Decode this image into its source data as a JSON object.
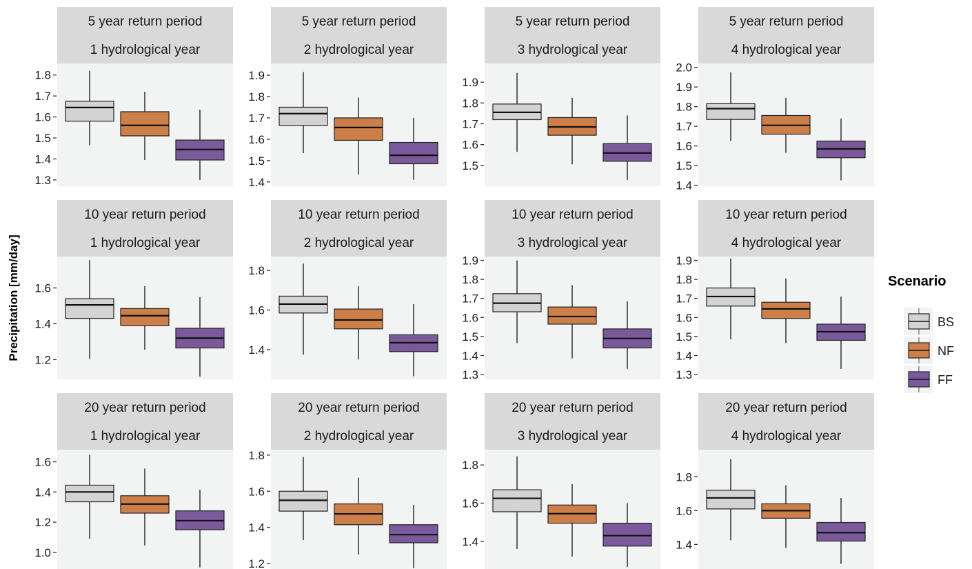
{
  "chart_data": {
    "type": "boxplot",
    "ylabel": "Precipitation [mm/day]",
    "legend": {
      "title": "Scenario",
      "placement": "right",
      "entries": [
        {
          "name": "BS",
          "color": "#d3d3d3"
        },
        {
          "name": "NF",
          "color": "#cd7f4a"
        },
        {
          "name": "FF",
          "color": "#7b5a9b"
        }
      ]
    },
    "panels": [
      {
        "strip_top": "5 year return period",
        "strip_bottom": "1 hydrological year",
        "ylim": [
          1.27,
          1.855
        ],
        "yticks": [
          1.3,
          1.4,
          1.5,
          1.6,
          1.7,
          1.8
        ],
        "tick_labels": [
          "1.3",
          "1.4",
          "1.5",
          "1.6",
          "1.7",
          "1.8"
        ],
        "boxes": [
          {
            "min": 1.465,
            "q1": 1.58,
            "median": 1.645,
            "q3": 1.675,
            "max": 1.82
          },
          {
            "min": 1.395,
            "q1": 1.51,
            "median": 1.56,
            "q3": 1.625,
            "max": 1.72
          },
          {
            "min": 1.3,
            "q1": 1.395,
            "median": 1.445,
            "q3": 1.49,
            "max": 1.635
          }
        ]
      },
      {
        "strip_top": "5 year return period",
        "strip_bottom": "2 hydrological year",
        "ylim": [
          1.38,
          1.955
        ],
        "yticks": [
          1.4,
          1.5,
          1.6,
          1.7,
          1.8,
          1.9
        ],
        "tick_labels": [
          "1.4",
          "1.5",
          "1.6",
          "1.7",
          "1.8",
          "1.9"
        ],
        "boxes": [
          {
            "min": 1.535,
            "q1": 1.665,
            "median": 1.72,
            "q3": 1.75,
            "max": 1.915
          },
          {
            "min": 1.435,
            "q1": 1.595,
            "median": 1.655,
            "q3": 1.7,
            "max": 1.795
          },
          {
            "min": 1.41,
            "q1": 1.485,
            "median": 1.525,
            "q3": 1.585,
            "max": 1.7
          }
        ]
      },
      {
        "strip_top": "5 year return period",
        "strip_bottom": "3 hydrological year",
        "ylim": [
          1.4,
          1.99
        ],
        "yticks": [
          1.5,
          1.6,
          1.7,
          1.8,
          1.9
        ],
        "tick_labels": [
          "1.5",
          "1.6",
          "1.7",
          "1.8",
          "1.9"
        ],
        "boxes": [
          {
            "min": 1.565,
            "q1": 1.72,
            "median": 1.755,
            "q3": 1.795,
            "max": 1.945
          },
          {
            "min": 1.505,
            "q1": 1.645,
            "median": 1.685,
            "q3": 1.73,
            "max": 1.825
          },
          {
            "min": 1.43,
            "q1": 1.52,
            "median": 1.56,
            "q3": 1.605,
            "max": 1.74
          }
        ]
      },
      {
        "strip_top": "5 year return period",
        "strip_bottom": "4 hydrological year",
        "ylim": [
          1.395,
          2.02
        ],
        "yticks": [
          1.4,
          1.5,
          1.6,
          1.7,
          1.8,
          1.9,
          2.0
        ],
        "tick_labels": [
          "1.4",
          "1.5",
          "1.6",
          "1.7",
          "1.8",
          "1.9",
          "2.0"
        ],
        "boxes": [
          {
            "min": 1.625,
            "q1": 1.735,
            "median": 1.79,
            "q3": 1.815,
            "max": 1.975
          },
          {
            "min": 1.565,
            "q1": 1.66,
            "median": 1.705,
            "q3": 1.755,
            "max": 1.845
          },
          {
            "min": 1.425,
            "q1": 1.54,
            "median": 1.585,
            "q3": 1.625,
            "max": 1.74
          }
        ]
      },
      {
        "strip_top": "10 year return period",
        "strip_bottom": "1 hydrological year",
        "ylim": [
          1.09,
          1.775
        ],
        "yticks": [
          1.2,
          1.4,
          1.6
        ],
        "tick_labels": [
          "1.2",
          "1.4",
          "1.6"
        ],
        "boxes": [
          {
            "min": 1.205,
            "q1": 1.43,
            "median": 1.505,
            "q3": 1.54,
            "max": 1.755
          },
          {
            "min": 1.255,
            "q1": 1.39,
            "median": 1.445,
            "q3": 1.485,
            "max": 1.61
          },
          {
            "min": 1.105,
            "q1": 1.265,
            "median": 1.32,
            "q3": 1.375,
            "max": 1.55
          }
        ]
      },
      {
        "strip_top": "10 year return period",
        "strip_bottom": "2 hydrological year",
        "ylim": [
          1.25,
          1.87
        ],
        "yticks": [
          1.4,
          1.6,
          1.8
        ],
        "tick_labels": [
          "1.4",
          "1.6",
          "1.8"
        ],
        "boxes": [
          {
            "min": 1.375,
            "q1": 1.585,
            "median": 1.63,
            "q3": 1.67,
            "max": 1.835
          },
          {
            "min": 1.35,
            "q1": 1.505,
            "median": 1.55,
            "q3": 1.605,
            "max": 1.72
          },
          {
            "min": 1.265,
            "q1": 1.39,
            "median": 1.435,
            "q3": 1.475,
            "max": 1.63
          }
        ]
      },
      {
        "strip_top": "10 year return period",
        "strip_bottom": "3 hydrological year",
        "ylim": [
          1.275,
          1.92
        ],
        "yticks": [
          1.3,
          1.4,
          1.5,
          1.6,
          1.7,
          1.8,
          1.9
        ],
        "tick_labels": [
          "1.3",
          "1.4",
          "1.5",
          "1.6",
          "1.7",
          "1.8",
          "1.9"
        ],
        "boxes": [
          {
            "min": 1.465,
            "q1": 1.63,
            "median": 1.675,
            "q3": 1.725,
            "max": 1.9
          },
          {
            "min": 1.385,
            "q1": 1.565,
            "median": 1.605,
            "q3": 1.655,
            "max": 1.77
          },
          {
            "min": 1.33,
            "q1": 1.44,
            "median": 1.49,
            "q3": 1.54,
            "max": 1.685
          }
        ]
      },
      {
        "strip_top": "10 year return period",
        "strip_bottom": "4 hydrological year",
        "ylim": [
          1.275,
          1.92
        ],
        "yticks": [
          1.3,
          1.4,
          1.5,
          1.6,
          1.7,
          1.8,
          1.9
        ],
        "tick_labels": [
          "1.3",
          "1.4",
          "1.5",
          "1.6",
          "1.7",
          "1.8",
          "1.9"
        ],
        "boxes": [
          {
            "min": 1.485,
            "q1": 1.66,
            "median": 1.71,
            "q3": 1.755,
            "max": 1.91
          },
          {
            "min": 1.465,
            "q1": 1.595,
            "median": 1.645,
            "q3": 1.68,
            "max": 1.805
          },
          {
            "min": 1.33,
            "q1": 1.48,
            "median": 1.525,
            "q3": 1.565,
            "max": 1.71
          }
        ]
      },
      {
        "strip_top": "20 year return period",
        "strip_bottom": "1 hydrological year",
        "ylim": [
          0.89,
          1.68
        ],
        "yticks": [
          1.0,
          1.2,
          1.4,
          1.6
        ],
        "tick_labels": [
          "1.0",
          "1.2",
          "1.4",
          "1.6"
        ],
        "boxes": [
          {
            "min": 1.09,
            "q1": 1.335,
            "median": 1.4,
            "q3": 1.445,
            "max": 1.645
          },
          {
            "min": 1.045,
            "q1": 1.26,
            "median": 1.32,
            "q3": 1.375,
            "max": 1.555
          },
          {
            "min": 0.9,
            "q1": 1.15,
            "median": 1.21,
            "q3": 1.275,
            "max": 1.415
          }
        ]
      },
      {
        "strip_top": "20 year return period",
        "strip_bottom": "2 hydrological year",
        "ylim": [
          1.17,
          1.83
        ],
        "yticks": [
          1.2,
          1.4,
          1.6,
          1.8
        ],
        "tick_labels": [
          "1.2",
          "1.4",
          "1.6",
          "1.8"
        ],
        "boxes": [
          {
            "min": 1.33,
            "q1": 1.49,
            "median": 1.55,
            "q3": 1.6,
            "max": 1.79
          },
          {
            "min": 1.25,
            "q1": 1.415,
            "median": 1.475,
            "q3": 1.53,
            "max": 1.675
          },
          {
            "min": 1.175,
            "q1": 1.315,
            "median": 1.36,
            "q3": 1.415,
            "max": 1.525
          }
        ]
      },
      {
        "strip_top": "20 year return period",
        "strip_bottom": "3 hydrological year",
        "ylim": [
          1.255,
          1.88
        ],
        "yticks": [
          1.4,
          1.6,
          1.8
        ],
        "tick_labels": [
          "1.4",
          "1.6",
          "1.8"
        ],
        "boxes": [
          {
            "min": 1.36,
            "q1": 1.555,
            "median": 1.625,
            "q3": 1.67,
            "max": 1.845
          },
          {
            "min": 1.32,
            "q1": 1.495,
            "median": 1.545,
            "q3": 1.59,
            "max": 1.7
          },
          {
            "min": 1.265,
            "q1": 1.375,
            "median": 1.43,
            "q3": 1.495,
            "max": 1.6
          }
        ]
      },
      {
        "strip_top": "20 year return period",
        "strip_bottom": "4 hydrological year",
        "ylim": [
          1.255,
          1.96
        ],
        "yticks": [
          1.4,
          1.6,
          1.8
        ],
        "tick_labels": [
          "1.4",
          "1.6",
          "1.8"
        ],
        "boxes": [
          {
            "min": 1.425,
            "q1": 1.61,
            "median": 1.675,
            "q3": 1.72,
            "max": 1.905
          },
          {
            "min": 1.38,
            "q1": 1.555,
            "median": 1.6,
            "q3": 1.64,
            "max": 1.75
          },
          {
            "min": 1.285,
            "q1": 1.42,
            "median": 1.47,
            "q3": 1.53,
            "max": 1.675
          }
        ]
      }
    ]
  }
}
